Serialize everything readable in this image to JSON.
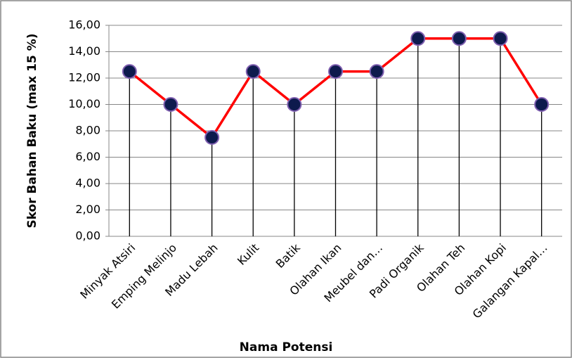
{
  "chart_data": {
    "type": "line",
    "x_label": "Nama Potensi",
    "y_label": "Skor Bahan Baku (max 15 %)",
    "categories": [
      "Minyak Atsiri",
      "Emping Melinjo",
      "Madu Lebah",
      "Kulit",
      "Batik",
      "Olahan Ikan",
      "Meubel dan…",
      "Padi Organik",
      "Olahan Teh",
      "Olahan Kopi",
      "Galangan Kapal…"
    ],
    "series": [
      {
        "name": "Skor Bahan Baku",
        "color": "#ff0000",
        "marker_color": "#0d1a4d",
        "marker_edge": "#7f5fb0",
        "values": [
          12.5,
          10,
          7.5,
          12.5,
          10,
          12.5,
          12.5,
          15,
          15,
          15,
          10
        ]
      }
    ],
    "drop_lines": true,
    "ylim": [
      0,
      16
    ],
    "yticks": [
      {
        "value": 0,
        "label": "0,00"
      },
      {
        "value": 2,
        "label": "2,00"
      },
      {
        "value": 4,
        "label": "4,00"
      },
      {
        "value": 6,
        "label": "6,00"
      },
      {
        "value": 8,
        "label": "8,00"
      },
      {
        "value": 10,
        "label": "10,00"
      },
      {
        "value": 12,
        "label": "12,00"
      },
      {
        "value": 14,
        "label": "14,00"
      },
      {
        "value": 16,
        "label": "16,00"
      }
    ],
    "grid": true
  }
}
